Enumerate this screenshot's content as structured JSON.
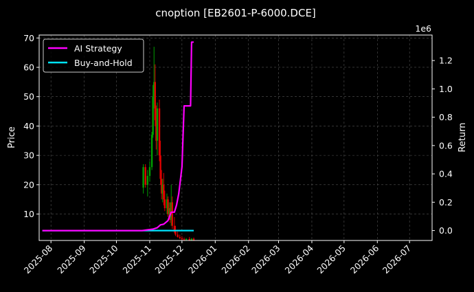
{
  "chart_data": {
    "type": "line",
    "title": "cnoption [EB2601-P-6000.DCE]",
    "ylabel_left": "Price",
    "ylabel_right": "Return",
    "right_axis_multiplier": "1e6",
    "left_ylim": [
      1,
      71
    ],
    "left_yticks": [
      10,
      20,
      30,
      40,
      50,
      60,
      70
    ],
    "right_ylim": [
      -0.07,
      1.38
    ],
    "right_yticks": [
      0.0,
      0.2,
      0.4,
      0.6,
      0.8,
      1.0,
      1.2
    ],
    "x_range": [
      "2025-07-21",
      "2026-07-22"
    ],
    "x_ticks": [
      "2025-08",
      "2025-09",
      "2025-10",
      "2025-11",
      "2025-12",
      "2026-01",
      "2026-02",
      "2026-03",
      "2026-04",
      "2026-05",
      "2026-06",
      "2026-07"
    ],
    "grid": true,
    "legend_position": "top-left",
    "colors": {
      "background": "#000000",
      "ai_strategy": "#ff00ff",
      "buy_and_hold": "#00e5ff",
      "candle_up": "#00a000",
      "candle_down": "#e00000",
      "grid": "#555555"
    },
    "series": [
      {
        "name": "AI Strategy",
        "axis": "right",
        "x": [
          "2025-07-24",
          "2025-10-25",
          "2025-10-30",
          "2025-11-04",
          "2025-11-08",
          "2025-11-11",
          "2025-11-14",
          "2025-11-18",
          "2025-11-21",
          "2025-11-24",
          "2025-11-26",
          "2025-11-28",
          "2025-12-01",
          "2025-12-03",
          "2025-12-05",
          "2025-12-06",
          "2025-12-09",
          "2025-12-10",
          "2025-12-12"
        ],
        "values": [
          0.0,
          0.0,
          0.005,
          0.01,
          0.02,
          0.04,
          0.045,
          0.07,
          0.13,
          0.13,
          0.18,
          0.26,
          0.45,
          0.88,
          0.88,
          0.88,
          0.88,
          1.33,
          1.33
        ]
      },
      {
        "name": "Buy-and-Hold",
        "axis": "right",
        "x": [
          "2025-07-24",
          "2025-12-12"
        ],
        "values": [
          0.0,
          0.0
        ]
      }
    ],
    "candles": [
      {
        "date": "2025-10-26",
        "open": 19,
        "high": 27,
        "low": 17,
        "close": 26
      },
      {
        "date": "2025-10-28",
        "open": 26,
        "high": 27,
        "low": 19,
        "close": 20
      },
      {
        "date": "2025-10-30",
        "open": 20,
        "high": 25,
        "low": 16,
        "close": 23
      },
      {
        "date": "2025-11-01",
        "open": 23,
        "high": 28,
        "low": 21,
        "close": 26
      },
      {
        "date": "2025-11-03",
        "open": 26,
        "high": 38,
        "low": 25,
        "close": 37
      },
      {
        "date": "2025-11-04",
        "open": 37,
        "high": 54,
        "low": 36,
        "close": 50
      },
      {
        "date": "2025-11-05",
        "open": 50,
        "high": 67,
        "low": 46,
        "close": 55
      },
      {
        "date": "2025-11-06",
        "open": 55,
        "high": 61,
        "low": 40,
        "close": 42
      },
      {
        "date": "2025-11-07",
        "open": 42,
        "high": 47,
        "low": 32,
        "close": 35
      },
      {
        "date": "2025-11-08",
        "open": 35,
        "high": 48,
        "low": 30,
        "close": 46
      },
      {
        "date": "2025-11-10",
        "open": 46,
        "high": 49,
        "low": 28,
        "close": 30
      },
      {
        "date": "2025-11-11",
        "open": 30,
        "high": 35,
        "low": 20,
        "close": 22
      },
      {
        "date": "2025-11-12",
        "open": 22,
        "high": 25,
        "low": 15,
        "close": 17
      },
      {
        "date": "2025-11-13",
        "open": 17,
        "high": 22,
        "low": 14,
        "close": 20
      },
      {
        "date": "2025-11-14",
        "open": 20,
        "high": 24,
        "low": 13,
        "close": 15
      },
      {
        "date": "2025-11-15",
        "open": 15,
        "high": 18,
        "low": 11,
        "close": 12
      },
      {
        "date": "2025-11-17",
        "open": 12,
        "high": 17,
        "low": 10,
        "close": 15
      },
      {
        "date": "2025-11-18",
        "open": 15,
        "high": 16,
        "low": 9,
        "close": 10
      },
      {
        "date": "2025-11-19",
        "open": 10,
        "high": 14,
        "low": 8,
        "close": 12
      },
      {
        "date": "2025-11-20",
        "open": 12,
        "high": 14,
        "low": 7,
        "close": 8
      },
      {
        "date": "2025-11-21",
        "open": 8,
        "high": 20,
        "low": 6,
        "close": 14
      },
      {
        "date": "2025-11-22",
        "open": 14,
        "high": 16,
        "low": 5,
        "close": 6
      },
      {
        "date": "2025-11-24",
        "open": 6,
        "high": 9,
        "low": 3.5,
        "close": 4
      },
      {
        "date": "2025-11-25",
        "open": 4,
        "high": 6,
        "low": 2.5,
        "close": 3
      },
      {
        "date": "2025-11-27",
        "open": 3,
        "high": 4,
        "low": 2,
        "close": 2.2
      },
      {
        "date": "2025-11-29",
        "open": 2.2,
        "high": 3,
        "low": 1.5,
        "close": 1.8
      },
      {
        "date": "2025-12-01",
        "open": 1.8,
        "high": 2.5,
        "low": 1.2,
        "close": 1.4
      },
      {
        "date": "2025-12-03",
        "open": 1.4,
        "high": 2,
        "low": 1.1,
        "close": 1.2
      },
      {
        "date": "2025-12-05",
        "open": 1.2,
        "high": 1.8,
        "low": 1.0,
        "close": 1.5
      },
      {
        "date": "2025-12-08",
        "open": 1.5,
        "high": 2.2,
        "low": 1.0,
        "close": 1.1
      },
      {
        "date": "2025-12-10",
        "open": 1.1,
        "high": 1.8,
        "low": 1.0,
        "close": 1.6
      },
      {
        "date": "2025-12-12",
        "open": 1.6,
        "high": 2.0,
        "low": 1.0,
        "close": 1.1
      }
    ]
  }
}
